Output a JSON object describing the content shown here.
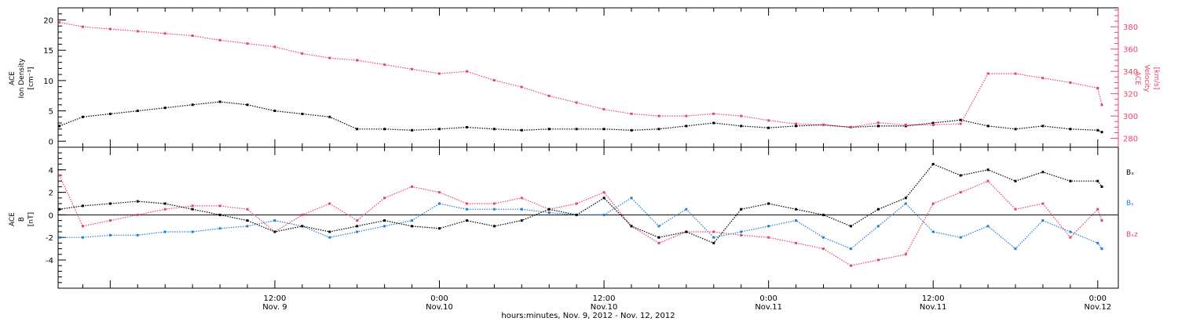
{
  "colors": {
    "black": "#000000",
    "pink": "#e8456a",
    "blue": "#1f7fd9"
  },
  "top_panel": {
    "ylabel_left": [
      "ACE",
      "Ion Density",
      "[cm⁻³]"
    ],
    "ylabel_right": [
      "ACE",
      "Velocity",
      "[km/s]"
    ],
    "left_ticks": [
      "0",
      "5",
      "10",
      "15",
      "20"
    ],
    "right_ticks": [
      "280",
      "300",
      "320",
      "340",
      "360",
      "380"
    ]
  },
  "bottom_panel": {
    "ylabel_left": [
      "ACE",
      "B",
      "[nT]"
    ],
    "left_ticks": [
      "-4",
      "-2",
      "0",
      "2",
      "4"
    ],
    "legend": [
      {
        "name": "Bₓ",
        "color": "#000000"
      },
      {
        "name": "Bᵧ",
        "color": "#1f7fd9"
      },
      {
        "name": "Bₓz",
        "color": "#e8456a"
      }
    ]
  },
  "xaxis": {
    "ticks": [
      {
        "time": "12:00",
        "date": "Nov. 9"
      },
      {
        "time": "0:00",
        "date": "Nov.10"
      },
      {
        "time": "12:00",
        "date": "Nov.10"
      },
      {
        "time": "0:00",
        "date": "Nov.11"
      },
      {
        "time": "12:00",
        "date": "Nov.11"
      },
      {
        "time": "0:00",
        "date": "Nov.12"
      }
    ],
    "title": "hours:minutes, Nov. 9, 2012 - Nov. 12, 2012"
  },
  "chart_data": [
    {
      "type": "scatter",
      "panel": "top",
      "x_unit": "hours since Nov. 9 00:00",
      "xlim": [
        -3.8,
        73.5
      ],
      "ylim_left": [
        -1,
        22
      ],
      "ylim_right": [
        272,
        397
      ],
      "grid": false,
      "series": [
        {
          "name": "Ion Density",
          "axis": "left",
          "color": "#000000",
          "x": [
            -3.7,
            -2,
            0,
            2,
            4,
            6,
            8,
            10,
            12,
            14,
            16,
            18,
            20,
            22,
            24,
            26,
            28,
            30,
            32,
            34,
            36,
            38,
            40,
            42,
            44,
            46,
            48,
            50,
            52,
            54,
            56,
            58,
            60,
            62,
            64,
            66,
            68,
            70,
            72,
            72.3
          ],
          "y": [
            2.5,
            4,
            4.5,
            5,
            5.5,
            6,
            6.5,
            6,
            5,
            4.5,
            4,
            2,
            2,
            1.8,
            2,
            2.3,
            2,
            1.8,
            2,
            2,
            2,
            1.8,
            2,
            2.5,
            3,
            2.5,
            2.2,
            2.5,
            2.7,
            2.3,
            2.5,
            2.5,
            3,
            3.5,
            2.5,
            2,
            2.5,
            2,
            1.8,
            1.5
          ]
        },
        {
          "name": "Velocity",
          "axis": "right",
          "color": "#e8456a",
          "x": [
            -3.7,
            -2,
            0,
            2,
            4,
            6,
            8,
            10,
            12,
            14,
            16,
            18,
            20,
            22,
            24,
            26,
            28,
            30,
            32,
            34,
            36,
            38,
            40,
            42,
            44,
            46,
            48,
            50,
            52,
            54,
            56,
            58,
            60,
            62,
            64,
            66,
            68,
            70,
            72,
            72.3
          ],
          "y": [
            384,
            380,
            378,
            376,
            374,
            372,
            368,
            365,
            362,
            356,
            352,
            350,
            346,
            342,
            338,
            340,
            332,
            326,
            318,
            312,
            306,
            302,
            300,
            300,
            302,
            300,
            296,
            293,
            292,
            290,
            294,
            292,
            292,
            293,
            338,
            338,
            334,
            330,
            325,
            310
          ]
        }
      ]
    },
    {
      "type": "scatter",
      "panel": "bottom",
      "x_unit": "hours since Nov. 9 00:00",
      "xlim": [
        -3.8,
        73.5
      ],
      "ylim": [
        -6.5,
        6
      ],
      "grid": false,
      "series": [
        {
          "name": "Bₓ",
          "color": "#000000",
          "x": [
            -3.7,
            -2,
            0,
            2,
            4,
            6,
            8,
            10,
            12,
            14,
            16,
            18,
            20,
            22,
            24,
            26,
            28,
            30,
            32,
            34,
            36,
            38,
            40,
            42,
            44,
            46,
            48,
            50,
            52,
            54,
            56,
            58,
            60,
            62,
            64,
            66,
            68,
            70,
            72,
            72.3
          ],
          "y": [
            0.5,
            0.8,
            1,
            1.2,
            1,
            0.5,
            0,
            -0.5,
            -1.5,
            -1,
            -1.5,
            -1,
            -0.5,
            -1,
            -1.2,
            -0.5,
            -1,
            -0.5,
            0.5,
            0,
            1.5,
            -1,
            -2,
            -1.5,
            -2.5,
            0.5,
            1,
            0.5,
            0,
            -1,
            0.5,
            1.5,
            4.5,
            3.5,
            4,
            3,
            3.8,
            3,
            3,
            2.5
          ]
        },
        {
          "name": "Bᵧ",
          "color": "#1f7fd9",
          "x": [
            -3.7,
            -2,
            0,
            2,
            4,
            6,
            8,
            10,
            12,
            14,
            16,
            18,
            20,
            22,
            24,
            26,
            28,
            30,
            32,
            34,
            36,
            38,
            40,
            42,
            44,
            46,
            48,
            50,
            52,
            54,
            56,
            58,
            60,
            62,
            64,
            66,
            68,
            70,
            72,
            72.3
          ],
          "y": [
            -2,
            -2,
            -1.8,
            -1.8,
            -1.5,
            -1.5,
            -1.2,
            -1,
            -0.5,
            -1,
            -2,
            -1.5,
            -1,
            -0.5,
            1,
            0.5,
            0.5,
            0.5,
            0.2,
            0,
            0,
            1.5,
            -1,
            0.5,
            -2,
            -1.5,
            -1,
            -0.5,
            -2,
            -3,
            -1,
            1,
            -1.5,
            -2,
            -1,
            -3,
            -0.5,
            -1.5,
            -2.5,
            -3
          ]
        },
        {
          "name": "Bₓz",
          "color": "#e8456a",
          "x": [
            -3.7,
            -2,
            0,
            2,
            4,
            6,
            8,
            10,
            12,
            14,
            16,
            18,
            20,
            22,
            24,
            26,
            28,
            30,
            32,
            34,
            36,
            38,
            40,
            42,
            44,
            46,
            48,
            50,
            52,
            54,
            56,
            58,
            60,
            62,
            64,
            66,
            68,
            70,
            72,
            72.3
          ],
          "y": [
            3.5,
            -1,
            -0.5,
            0,
            0.5,
            0.8,
            0.8,
            0.5,
            -1.5,
            0,
            1,
            -0.5,
            1.5,
            2.5,
            2,
            1,
            1,
            1.5,
            0.5,
            1,
            2,
            -1,
            -2.5,
            -1.5,
            -1.5,
            -1.8,
            -2,
            -2.5,
            -3,
            -4.5,
            -4,
            -3.5,
            1,
            2,
            3,
            0.5,
            1,
            -2,
            0.5,
            -0.5
          ]
        }
      ]
    }
  ]
}
